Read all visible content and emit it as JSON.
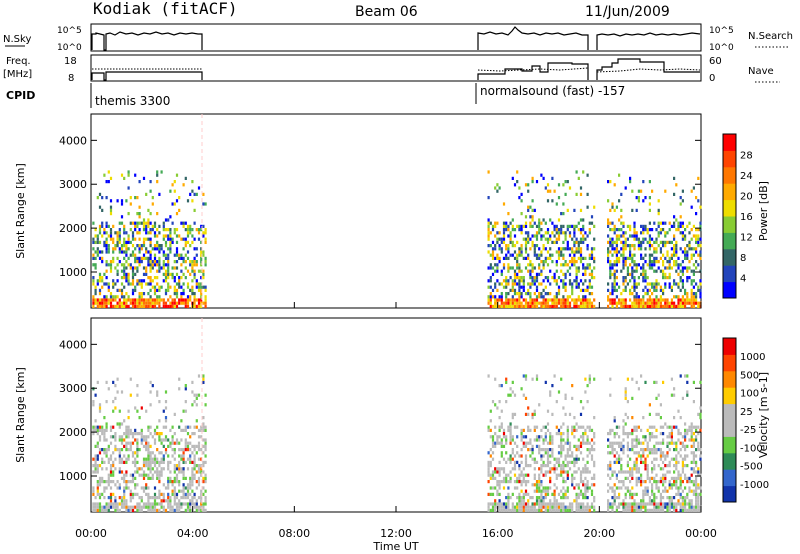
{
  "header": {
    "station": "Kodiak (fitACF)",
    "beam": "Beam 06",
    "date": "11/Jun/2009"
  },
  "summary_panels": {
    "nsky": {
      "label": "N.Sky",
      "ticks": [
        "10^5",
        "10^0"
      ],
      "right_label": "N.Search",
      "right_ticks": [
        "10^5",
        "10^0"
      ]
    },
    "freq": {
      "label_top": "Freq.",
      "label_bottom": "[MHz]",
      "ticks": [
        "18",
        "8"
      ],
      "right_label": "Nave",
      "right_ticks": [
        "60",
        "0"
      ]
    },
    "cpid": {
      "label": "CPID",
      "entries": [
        {
          "text": "themis 3300",
          "start_hour": 0.1,
          "end_hour": 4.55
        },
        {
          "text": "normalsound (fast) -157",
          "start_hour": 15.6,
          "end_hour": 24.0
        }
      ]
    }
  },
  "chart_data": [
    {
      "type": "heatmap",
      "name": "power",
      "ylabel": "Slant Range [km]",
      "colorbar_label": "Power [dB]",
      "colorbar_ticks": [
        "28",
        "24",
        "20",
        "16",
        "12",
        "8",
        "4"
      ],
      "colors": [
        "#0000ff",
        "#2244bb",
        "#336666",
        "#44aa55",
        "#88cc33",
        "#eedd00",
        "#ffaa00",
        "#ff7700",
        "#ff4400",
        "#ff0000"
      ],
      "yticks": [
        "1000",
        "2000",
        "3000",
        "4000"
      ],
      "ylim": [
        180,
        4600
      ],
      "xlim": [
        0,
        24
      ],
      "data_intervals_hours": [
        [
          0.05,
          4.55
        ],
        [
          15.6,
          19.8
        ],
        [
          20.3,
          24.0
        ]
      ]
    },
    {
      "type": "heatmap",
      "name": "velocity",
      "ylabel": "Slant Range [km]",
      "colorbar_label": "Velocity [m s-1]",
      "colorbar_ticks": [
        "1000",
        "500",
        "100",
        "25",
        "-25",
        "-100",
        "-500",
        "-1000"
      ],
      "colors": [
        "#1133aa",
        "#3366cc",
        "#2e8b57",
        "#66cc44",
        "#bbbbbb",
        "#bbbbbb",
        "#ffcc00",
        "#ff8800",
        "#ff4400",
        "#ee0000"
      ],
      "yticks": [
        "1000",
        "2000",
        "3000",
        "4000"
      ],
      "ylim": [
        180,
        4600
      ],
      "xlim": [
        0,
        24
      ],
      "data_intervals_hours": [
        [
          0.05,
          4.55
        ],
        [
          15.6,
          19.8
        ],
        [
          20.3,
          24.0
        ]
      ]
    }
  ],
  "x_axis": {
    "ticks": [
      "00:00",
      "04:00",
      "08:00",
      "12:00",
      "16:00",
      "20:00",
      "00:00"
    ],
    "label": "Time UT"
  }
}
